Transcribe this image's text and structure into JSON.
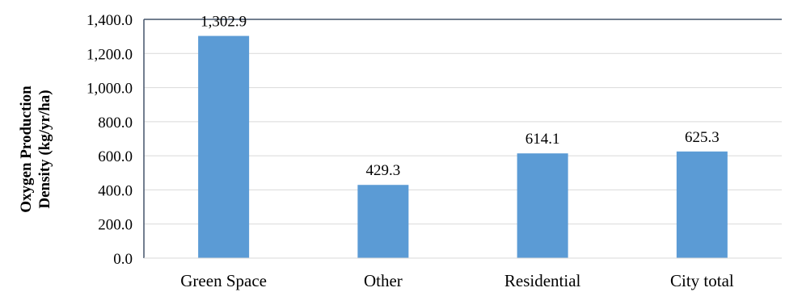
{
  "chart_data": {
    "type": "bar",
    "title": "",
    "xlabel": "",
    "ylabel_lines": [
      "Oxygen Production",
      "Density (kg/yr/ha)"
    ],
    "categories": [
      "Green Space",
      "Other",
      "Residential",
      "City total"
    ],
    "values": [
      1302.9,
      429.3,
      614.1,
      625.3
    ],
    "value_labels": [
      "1,302.9",
      "429.3",
      "614.1",
      "625.3"
    ],
    "ylim": [
      0,
      1400
    ],
    "yticks": [
      0,
      200,
      400,
      600,
      800,
      1000,
      1200,
      1400
    ],
    "ytick_labels": [
      "0.0",
      "200.0",
      "400.0",
      "600.0",
      "800.0",
      "1,000.0",
      "1,200.0",
      "1,400.0"
    ],
    "grid": true,
    "legend": "none",
    "colors": {
      "bar": "#5B9BD5",
      "grid": "#D9D9D9",
      "frame": "#44546A"
    }
  }
}
